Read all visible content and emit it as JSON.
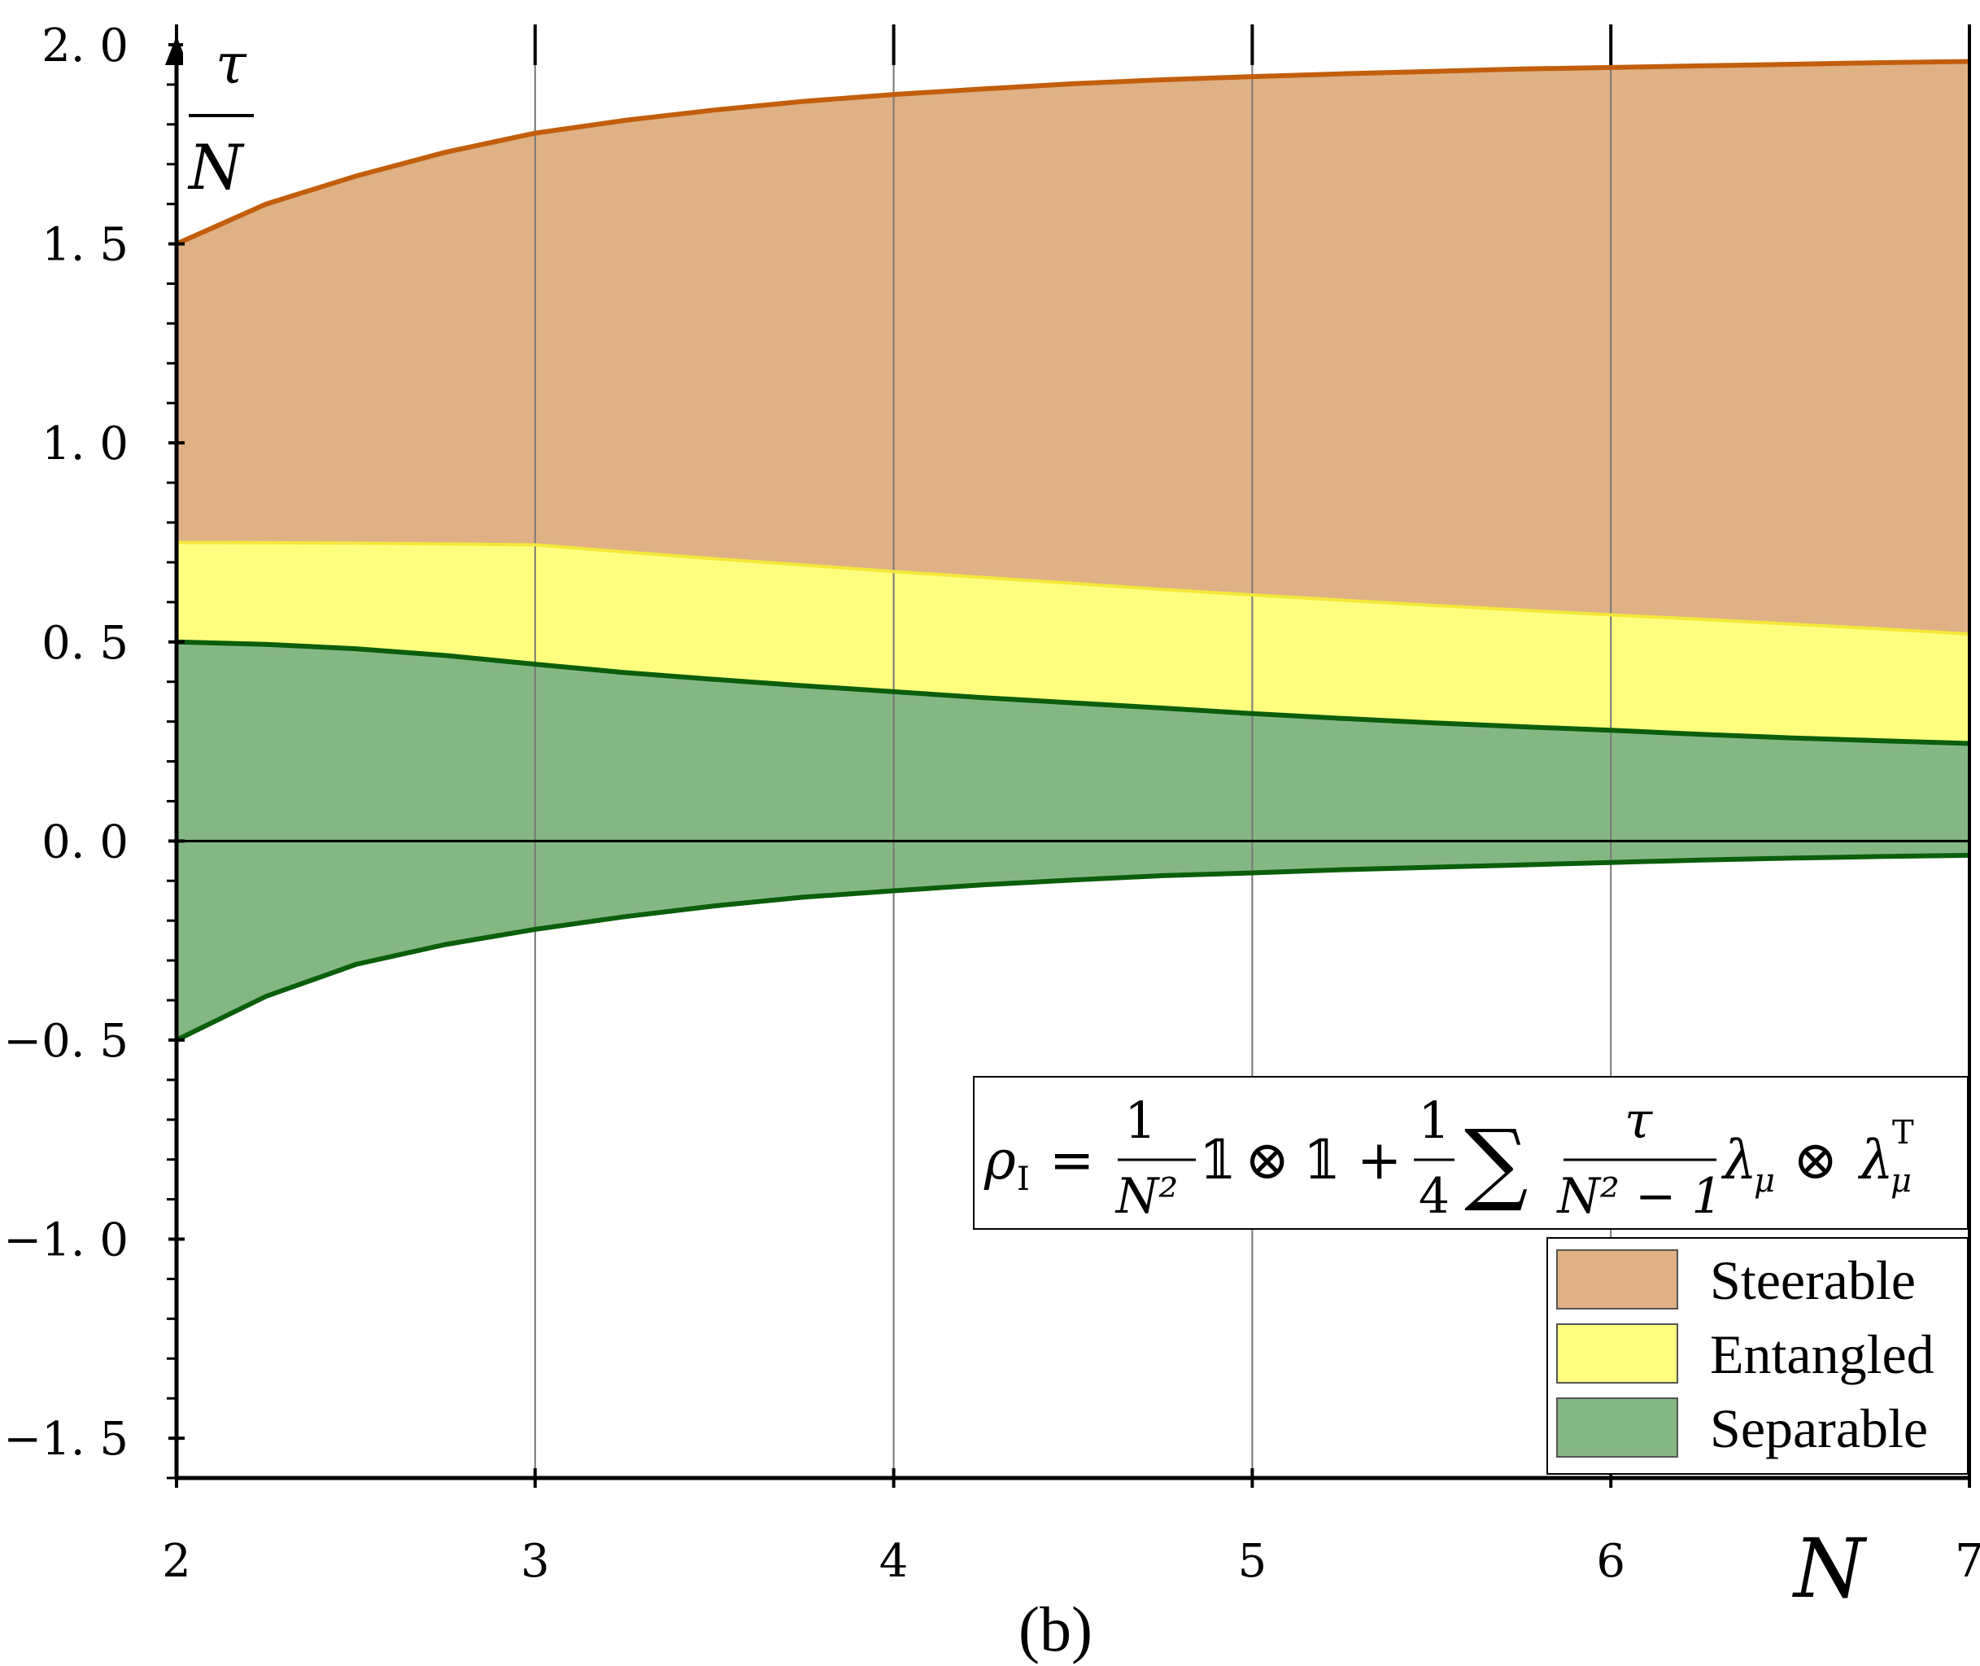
{
  "chart_data": {
    "type": "area",
    "title": "",
    "caption": "(b)",
    "xlabel": "N",
    "ylabel_num": "τ",
    "ylabel_den": "N",
    "xlim": [
      2,
      7
    ],
    "ylim": [
      -1.6,
      2.0
    ],
    "x_ticks": [
      "2",
      "3",
      "4",
      "5",
      "6",
      "7"
    ],
    "y_ticks": [
      "−1. 5",
      "−1. 0",
      "−0. 5",
      "0. 0",
      "0. 5",
      "1. 0",
      "1. 5",
      "2. 0"
    ],
    "y_tick_values": [
      -1.5,
      -1.0,
      -0.5,
      0.0,
      0.5,
      1.0,
      1.5,
      2.0
    ],
    "x": [
      2,
      2.25,
      2.5,
      2.75,
      3,
      3.25,
      3.5,
      3.75,
      4,
      4.25,
      4.5,
      4.75,
      5,
      5.25,
      5.5,
      5.75,
      6,
      6.25,
      6.5,
      6.75,
      7
    ],
    "series": [
      {
        "name": "Steerable upper",
        "values": [
          1.5,
          1.6,
          1.67,
          1.73,
          1.778,
          1.81,
          1.836,
          1.858,
          1.875,
          1.889,
          1.902,
          1.912,
          1.92,
          1.927,
          1.933,
          1.939,
          1.943,
          1.947,
          1.951,
          1.955,
          1.958
        ]
      },
      {
        "name": "Entangled upper",
        "values": [
          0.75,
          0.749,
          0.748,
          0.746,
          0.744,
          0.726,
          0.709,
          0.693,
          0.677,
          0.662,
          0.647,
          0.632,
          0.618,
          0.605,
          0.592,
          0.58,
          0.568,
          0.557,
          0.545,
          0.533,
          0.52
        ]
      },
      {
        "name": "Separable upper",
        "values": [
          0.5,
          0.494,
          0.483,
          0.466,
          0.444,
          0.423,
          0.406,
          0.39,
          0.375,
          0.36,
          0.347,
          0.334,
          0.32,
          0.308,
          0.297,
          0.287,
          0.278,
          0.268,
          0.259,
          0.252,
          0.245
        ]
      },
      {
        "name": "Separable lower",
        "values": [
          -0.5,
          -0.39,
          -0.31,
          -0.26,
          -0.222,
          -0.19,
          -0.163,
          -0.141,
          -0.125,
          -0.11,
          -0.098,
          -0.087,
          -0.08,
          -0.072,
          -0.066,
          -0.06,
          -0.054,
          -0.048,
          -0.043,
          -0.039,
          -0.036
        ]
      }
    ],
    "legend": {
      "position": "bottom-right",
      "entries": [
        {
          "label": "Steerable",
          "color": "#dfb184"
        },
        {
          "label": "Entangled",
          "color": "#ffff7f"
        },
        {
          "label": "Separable",
          "color": "#85b784"
        }
      ]
    },
    "colors": {
      "steerable_fill": "#dfb184",
      "steerable_line": "#c25e0c",
      "entangled_fill": "#ffff7f",
      "entangled_line": "#f3e83a",
      "separable_fill": "#85b784",
      "separable_line": "#0b5e0b",
      "grid": "#777777"
    },
    "annotation": {
      "rho": "ρ",
      "rho_sub": "I",
      "eq": "=",
      "one": "1",
      "n2": "N²",
      "id_a": "𝟙",
      "otimes_a": "⊗",
      "id_b": "𝟙",
      "plus": "+",
      "quarter_num": "1",
      "quarter_den": "4",
      "sum": "∑",
      "tau": "τ",
      "n2m1": "N² − 1",
      "lambda_a": "λ",
      "mu_a": "μ",
      "otimes_b": "⊗",
      "lambda_b": "λ",
      "mu_b": "μ",
      "T": "T"
    }
  }
}
